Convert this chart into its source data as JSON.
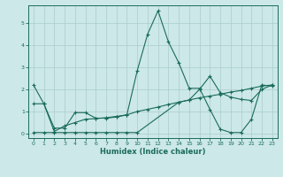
{
  "xlabel": "Humidex (Indice chaleur)",
  "background_color": "#cce8e8",
  "grid_color": "#aacccc",
  "line_color": "#1a6b5a",
  "xlim": [
    -0.5,
    23.5
  ],
  "ylim": [
    -0.2,
    5.8
  ],
  "xticks": [
    0,
    1,
    2,
    3,
    4,
    5,
    6,
    7,
    8,
    9,
    10,
    11,
    12,
    13,
    14,
    15,
    16,
    17,
    18,
    19,
    20,
    21,
    22,
    23
  ],
  "yticks": [
    0,
    1,
    2,
    3,
    4,
    5
  ],
  "line1_x": [
    0,
    1,
    2,
    3,
    4,
    5,
    6,
    7,
    8,
    9,
    10,
    11,
    12,
    13,
    14,
    15,
    16,
    17,
    18,
    19,
    20,
    21,
    22,
    23
  ],
  "line1_y": [
    2.2,
    1.35,
    0.25,
    0.25,
    0.95,
    0.95,
    0.7,
    0.7,
    0.75,
    0.85,
    2.85,
    4.5,
    5.55,
    4.15,
    3.2,
    2.05,
    2.05,
    1.1,
    0.2,
    0.05,
    0.05,
    0.65,
    2.2,
    2.15
  ],
  "line2_x": [
    0,
    1,
    2,
    3,
    4,
    5,
    6,
    7,
    8,
    9,
    10,
    11,
    12,
    13,
    14,
    15,
    16,
    17,
    18,
    19,
    20,
    21,
    22,
    23
  ],
  "line2_y": [
    1.35,
    1.35,
    0.1,
    0.35,
    0.5,
    0.65,
    0.68,
    0.72,
    0.78,
    0.85,
    1.0,
    1.1,
    1.2,
    1.32,
    1.42,
    1.52,
    1.62,
    1.7,
    1.78,
    1.88,
    1.95,
    2.05,
    2.15,
    2.2
  ],
  "line3_x": [
    0,
    1,
    2,
    3,
    4,
    5,
    6,
    7,
    8,
    9,
    10,
    14,
    15,
    16,
    17,
    18,
    19,
    20,
    21,
    22,
    23
  ],
  "line3_y": [
    0.05,
    0.05,
    0.05,
    0.05,
    0.05,
    0.05,
    0.05,
    0.05,
    0.05,
    0.05,
    0.05,
    1.42,
    1.52,
    2.0,
    2.6,
    1.85,
    1.65,
    1.55,
    1.5,
    2.0,
    2.2
  ]
}
